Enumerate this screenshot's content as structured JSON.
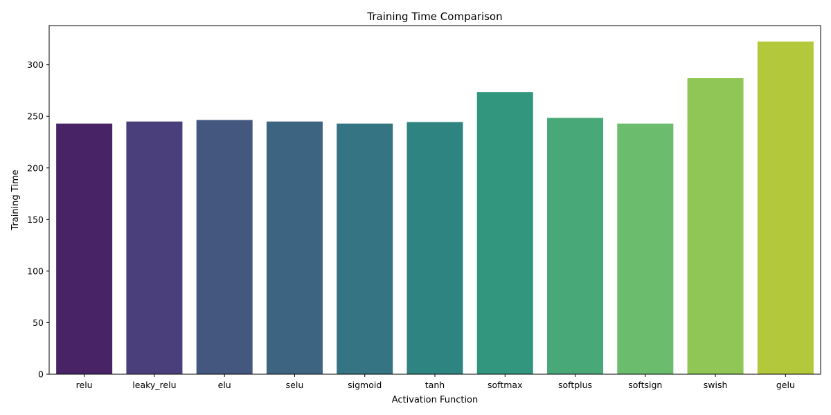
{
  "chart_data": {
    "type": "bar",
    "title": "Training Time Comparison",
    "xlabel": "Activation Function",
    "ylabel": "Training Time",
    "categories": [
      "relu",
      "leaky_relu",
      "elu",
      "selu",
      "sigmoid",
      "tanh",
      "softmax",
      "softplus",
      "softsign",
      "swish",
      "gelu"
    ],
    "values": [
      243,
      245,
      246.5,
      245,
      243,
      244.5,
      273.5,
      248.5,
      243,
      287,
      322.5
    ],
    "colors": [
      "#482466",
      "#4a3f7b",
      "#44577f",
      "#3d6582",
      "#357482",
      "#2e8480",
      "#31967d",
      "#48a877",
      "#6bbd6d",
      "#8fc656",
      "#b4c83c"
    ],
    "yticks": [
      0,
      50,
      100,
      150,
      200,
      250,
      300
    ],
    "ylim": [
      0,
      338
    ],
    "grid": false,
    "legend": "none"
  }
}
